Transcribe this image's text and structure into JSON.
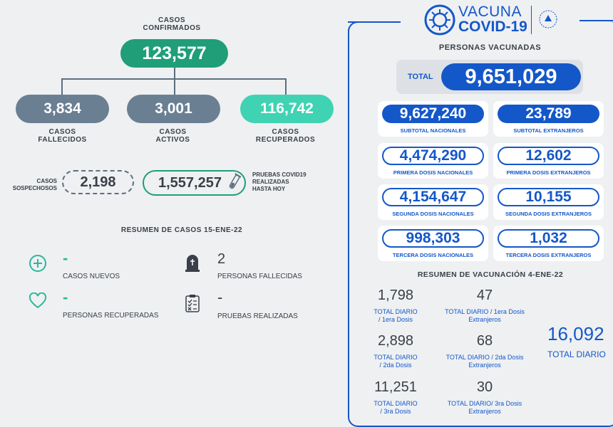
{
  "confirmed": {
    "label_line1": "CASOS",
    "label_line2": "CONFIRMADOS",
    "value": "123,577"
  },
  "deaths": {
    "value": "3,834",
    "label_line1": "CASOS",
    "label_line2": "FALLECIDOS"
  },
  "active": {
    "value": "3,001",
    "label_line1": "CASOS",
    "label_line2": "ACTIVOS"
  },
  "recovered": {
    "value": "116,742",
    "label_line1": "CASOS",
    "label_line2": "RECUPERADOS"
  },
  "suspected": {
    "label_line1": "CASOS",
    "label_line2": "SOSPECHOSOS",
    "value": "2,198"
  },
  "tests": {
    "value": "1,557,257",
    "label_line1": "PRUEBAS COVID19",
    "label_line2": "REALIZADAS",
    "label_line3": "HASTA HOY"
  },
  "summary": {
    "title": "RESUMEN DE CASOS 15-ENE-22",
    "new_cases": {
      "value": "-",
      "label": "CASOS NUEVOS"
    },
    "deaths": {
      "value": "2",
      "label": "PERSONAS FALLECIDAS"
    },
    "recovered": {
      "value": "-",
      "label": "PERSONAS RECUPERADAS"
    },
    "tests": {
      "value": "-",
      "label": "PRUEBAS REALIZADAS"
    }
  },
  "vaccine": {
    "logo_line1": "VACUNA",
    "logo_line2": "COVID-19",
    "title": "PERSONAS VACUNADAS",
    "total_label": "TOTAL",
    "total_value": "9,651,029",
    "cards": [
      {
        "value": "9,627,240",
        "label": "SUBTOTAL NACIONALES"
      },
      {
        "value": "23,789",
        "label": "SUBTOTAL EXTRANJEROS"
      },
      {
        "value": "4,474,290",
        "label": "PRIMERA DOSIS NACIONALES"
      },
      {
        "value": "12,602",
        "label": "PRIMERA DOSIS EXTRANJEROS"
      },
      {
        "value": "4,154,647",
        "label": "SEGUNDA DOSIS NACIONALES"
      },
      {
        "value": "10,155",
        "label": "SEGUNDA DOSIS EXTRANJEROS"
      },
      {
        "value": "998,303",
        "label": "TERCERA DOSIS NACIONALES"
      },
      {
        "value": "1,032",
        "label": "TERCERA DOSIS EXTRANJEROS"
      }
    ],
    "summary_title": "RESUMEN DE VACUNACIÓN 4-ENE-22",
    "daily": [
      {
        "value": "1,798",
        "line1": "TOTAL DIARIO",
        "line2": "/ 1era Dosis"
      },
      {
        "value": "47",
        "line1": "TOTAL DIARIO / 1era Dosis",
        "line2": "Extranjeros"
      },
      {
        "value": "2,898",
        "line1": "TOTAL DIARIO",
        "line2": "/ 2da Dosis"
      },
      {
        "value": "68",
        "line1": "TOTAL DIARIO / 2da Dosis",
        "line2": "Extranjeros"
      },
      {
        "value": "11,251",
        "line1": "TOTAL DIARIO",
        "line2": "/ 3ra Dosis"
      },
      {
        "value": "30",
        "line1": "TOTAL DIARIO/ 3ra Dosis",
        "line2": "Extranjeros"
      }
    ],
    "daily_total_value": "16,092",
    "daily_total_label": "TOTAL DIARIO"
  },
  "colors": {
    "green": "#1f9e78",
    "slate": "#6b7f93",
    "mint": "#3fd3b3",
    "blue": "#1457c9"
  }
}
